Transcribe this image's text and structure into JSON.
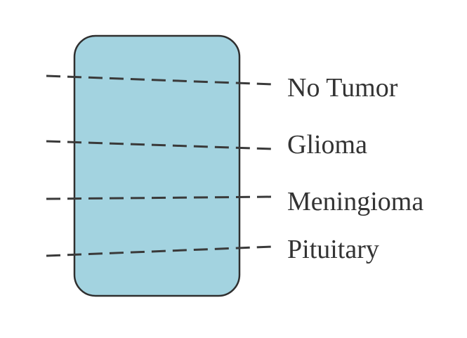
{
  "diagram": {
    "colors": {
      "box_fill": "#a3d3e0",
      "box_stroke": "#2f2f2f",
      "dash_stroke": "#3a3a3a",
      "text": "#333333",
      "background": "#ffffff"
    },
    "classes": [
      {
        "label": "No Tumor"
      },
      {
        "label": "Glioma"
      },
      {
        "label": "Meningioma"
      },
      {
        "label": "Pituitary"
      }
    ]
  }
}
